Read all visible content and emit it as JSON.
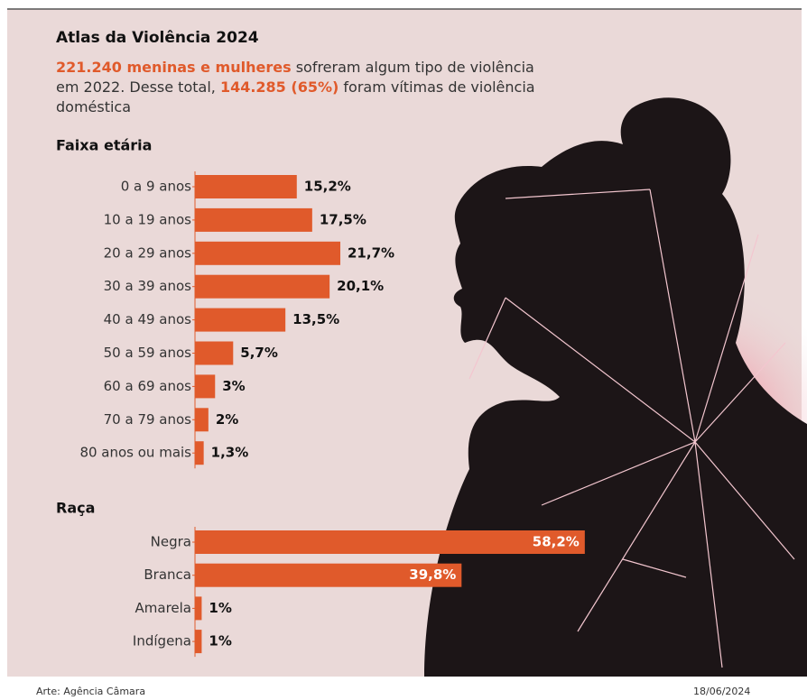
{
  "header": {
    "title": "Atlas da Violência 2024",
    "subtitle": [
      "221.240 meninas e mulheres",
      " sofreram algum tipo de violência em 2022. Desse total, ",
      "144.285 (65%)",
      " foram vítimas de violência doméstica"
    ]
  },
  "chart_data": [
    {
      "type": "bar",
      "orientation": "horizontal",
      "title": "Faixa etária",
      "color": "#e05a2b",
      "categories": [
        "0 a 9 anos",
        "10 a 19 anos",
        "20 a 29 anos",
        "30 a 39 anos",
        "40 a 49 anos",
        "50 a 59 anos",
        "60 a 69 anos",
        "70 a 79 anos",
        "80 anos ou mais"
      ],
      "values": [
        15.2,
        17.5,
        21.7,
        20.1,
        13.5,
        5.7,
        3,
        2,
        1.3
      ],
      "value_labels": [
        "15,2%",
        "17,5%",
        "21,7%",
        "20,1%",
        "13,5%",
        "5,7%",
        "3%",
        "2%",
        "1,3%"
      ]
    },
    {
      "type": "bar",
      "orientation": "horizontal",
      "title": "Raça",
      "color": "#e05a2b",
      "categories": [
        "Negra",
        "Branca",
        "Amarela",
        "Indígena"
      ],
      "values": [
        58.2,
        39.8,
        1,
        1
      ],
      "value_labels": [
        "58,2%",
        "39,8%",
        "1%",
        "1%"
      ]
    }
  ],
  "footer": {
    "credit": "Arte: Agência Câmara",
    "date": "18/06/2024"
  }
}
